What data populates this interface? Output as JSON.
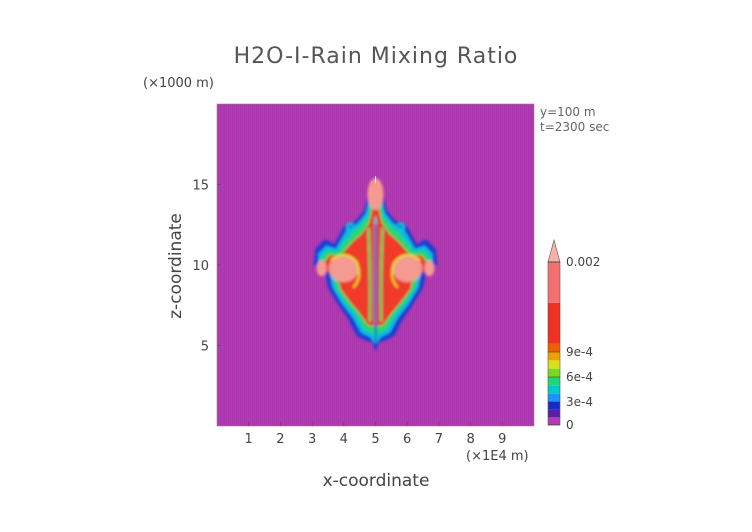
{
  "chart_data": {
    "type": "heatmap",
    "title": "H2O-I-Rain Mixing Ratio",
    "xlabel": "x-coordinate",
    "ylabel": "z-coordinate",
    "x_scale_label": "(×1E4 m)",
    "y_scale_label": "(×1000 m)",
    "annotations": [
      "y=100 m",
      "t=2300 sec"
    ],
    "x_ticks": [
      1,
      2,
      3,
      4,
      5,
      6,
      7,
      8,
      9
    ],
    "y_ticks": [
      5,
      10,
      15
    ],
    "xlim": [
      0,
      10
    ],
    "ylim": [
      0,
      20
    ],
    "colorbar_labels": [
      {
        "label": "0.002",
        "value": 0.002
      },
      {
        "label": "9e-4",
        "value": 0.0009
      },
      {
        "label": "6e-4",
        "value": 0.0006
      },
      {
        "label": "3e-4",
        "value": 0.0003
      },
      {
        "label": "0",
        "value": 0
      }
    ],
    "colorbar_levels": [
      {
        "value": 0,
        "color": "#b43ab4"
      },
      {
        "value": 0.0001,
        "color": "#5a1fa0"
      },
      {
        "value": 0.0002,
        "color": "#1a28d0"
      },
      {
        "value": 0.0003,
        "color": "#1e90ff"
      },
      {
        "value": 0.0004,
        "color": "#00c8d0"
      },
      {
        "value": 0.0005,
        "color": "#1ed878"
      },
      {
        "value": 0.0006,
        "color": "#7ad81e"
      },
      {
        "value": 0.0007,
        "color": "#d8e01e"
      },
      {
        "value": 0.0008,
        "color": "#f0a000"
      },
      {
        "value": 0.0009,
        "color": "#f06000"
      },
      {
        "value": 0.001,
        "color": "#f03020"
      },
      {
        "value": 0.0015,
        "color": "#f47070"
      },
      {
        "value": 0.002,
        "color": "#f8b0a8"
      }
    ],
    "field_colors": {
      "background": "#b43ab4",
      "blue": "#1a3cd8",
      "cyan": "#10c0d8",
      "green": "#2cd86a",
      "yellow": "#e0e020",
      "red": "#f03a2a",
      "pink": "#f59a90",
      "magenta_dark": "#8a1f90"
    }
  }
}
